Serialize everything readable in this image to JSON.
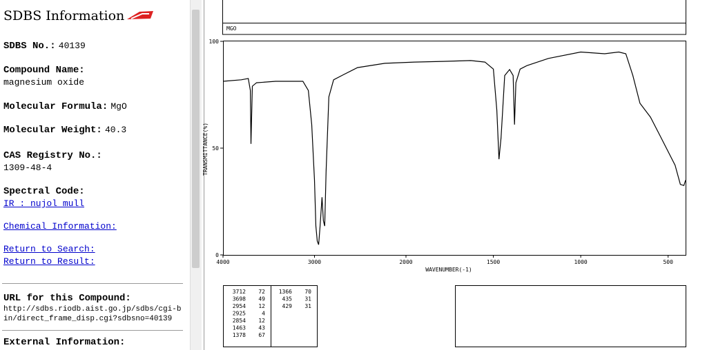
{
  "sidebar": {
    "title": "SDBS Information",
    "sdbs_no": {
      "label": "SDBS No.:",
      "value": "40139"
    },
    "compound_name": {
      "label": "Compound Name:",
      "value": "magnesium oxide"
    },
    "formula": {
      "label": "Molecular Formula:",
      "value": "MgO"
    },
    "weight": {
      "label": "Molecular Weight:",
      "value": "40.3"
    },
    "cas": {
      "label": "CAS Registry No.:",
      "value": "1309-48-4"
    },
    "spectral_code": {
      "label": "Spectral Code:",
      "link": "IR : nujol mull"
    },
    "chemical_info": "Chemical Information:",
    "return_search": "Return to Search:",
    "return_result": "Return to Result:",
    "url": {
      "label": "URL for this Compound:",
      "value": "http://sdbs.riodb.aist.go.jp/sdbs/cgi-bin/direct_frame_disp.cgi?sdbsno=40139"
    },
    "external": "External Information:"
  },
  "spectrum": {
    "type": "line",
    "sample": "MGO",
    "x_label": "WAVENUMBER(-1)",
    "y_label": "TRANSMITTANCE(%)",
    "xlim": [
      4000,
      400
    ],
    "x_break": 2000,
    "ylim": [
      0,
      100
    ],
    "xticks": [
      4000,
      3000,
      2000,
      1500,
      1000,
      500
    ],
    "yticks": [
      0,
      50,
      100
    ],
    "color": "#000000",
    "x": [
      4000,
      3800,
      3724,
      3701,
      3694,
      3679,
      3634,
      3425,
      3127,
      3067,
      3030,
      3000,
      2985,
      2970,
      2955,
      2940,
      2918,
      2903,
      2888,
      2873,
      2843,
      2791,
      2679,
      2530,
      2231,
      1952,
      1790,
      1629,
      1548,
      1500,
      1480,
      1468,
      1456,
      1435,
      1407,
      1387,
      1379,
      1371,
      1347,
      1306,
      1185,
      1000,
      863,
      782,
      742,
      702,
      661,
      601,
      540,
      460,
      430,
      410,
      400
    ],
    "values": [
      81.3,
      82,
      82.6,
      77,
      52,
      79,
      80.6,
      81.3,
      81.3,
      77,
      61,
      35,
      13.5,
      6.5,
      4.8,
      13,
      27,
      16,
      13.5,
      39,
      74,
      82,
      84.5,
      87.7,
      89.7,
      90.3,
      90.6,
      91,
      90.3,
      87,
      67.7,
      44.8,
      54.8,
      84,
      86.8,
      84,
      61,
      80.6,
      87,
      88.7,
      92,
      95,
      94.2,
      95,
      94.2,
      84,
      71,
      64.5,
      54.8,
      42,
      33,
      32.5,
      35
    ]
  },
  "peaks": {
    "rows": [
      [
        3712,
        72
      ],
      [
        3698,
        49
      ],
      [
        2954,
        12
      ],
      [
        2925,
        4
      ],
      [
        2854,
        12
      ],
      [
        1463,
        43
      ],
      [
        1378,
        67
      ],
      [
        1366,
        70
      ],
      [
        435,
        31
      ],
      [
        429,
        31
      ]
    ]
  }
}
